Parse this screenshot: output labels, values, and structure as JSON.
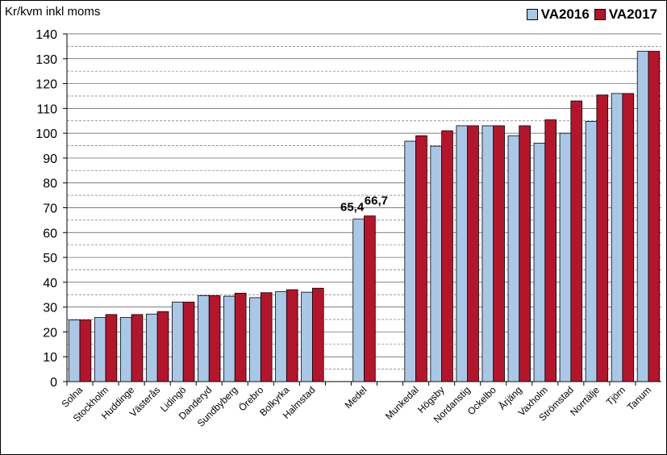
{
  "chart_data": {
    "type": "bar",
    "title": "",
    "ylabel": "Kr/kvm inkl moms",
    "xlabel": "",
    "ylim": [
      0,
      140
    ],
    "yticks": [
      0,
      10,
      20,
      30,
      40,
      50,
      60,
      70,
      80,
      90,
      100,
      110,
      120,
      130,
      140
    ],
    "grid": true,
    "legend_position": "top-right",
    "colors": {
      "VA2016": "#a9c8e8",
      "VA2017": "#b5152b"
    },
    "categories": [
      "Solna",
      "Stockholm",
      "Huddinge",
      "Västerås",
      "Lidingö",
      "Danderyd",
      "Sundbyberg",
      "Örebro",
      "Bolkyrka",
      "Halmstad",
      "",
      "Medel",
      "",
      "Munkedal",
      "Högsby",
      "Nordanstig",
      "Ockelbo",
      "Årjäng",
      "Vaxholm",
      "Strömstad",
      "Norrtälje",
      "Tjörn",
      "Tanum"
    ],
    "series": [
      {
        "name": "VA2016",
        "values": [
          24.8,
          25.8,
          25.8,
          27.2,
          32.0,
          34.6,
          34.4,
          33.8,
          36.2,
          36.0,
          null,
          65.4,
          null,
          96.8,
          94.8,
          103.0,
          103.0,
          99.0,
          96.0,
          100.0,
          104.8,
          116.0,
          133.0
        ]
      },
      {
        "name": "VA2017",
        "values": [
          24.8,
          27.0,
          27.0,
          28.2,
          32.0,
          34.6,
          35.6,
          35.8,
          37.0,
          37.6,
          null,
          66.7,
          null,
          99.0,
          101.0,
          103.0,
          103.0,
          103.0,
          105.4,
          113.0,
          115.4,
          116.0,
          133.0
        ]
      }
    ],
    "data_labels": [
      {
        "category": "Medel",
        "series": "VA2016",
        "text": "65,4"
      },
      {
        "category": "Medel",
        "series": "VA2017",
        "text": "66,7"
      }
    ]
  }
}
